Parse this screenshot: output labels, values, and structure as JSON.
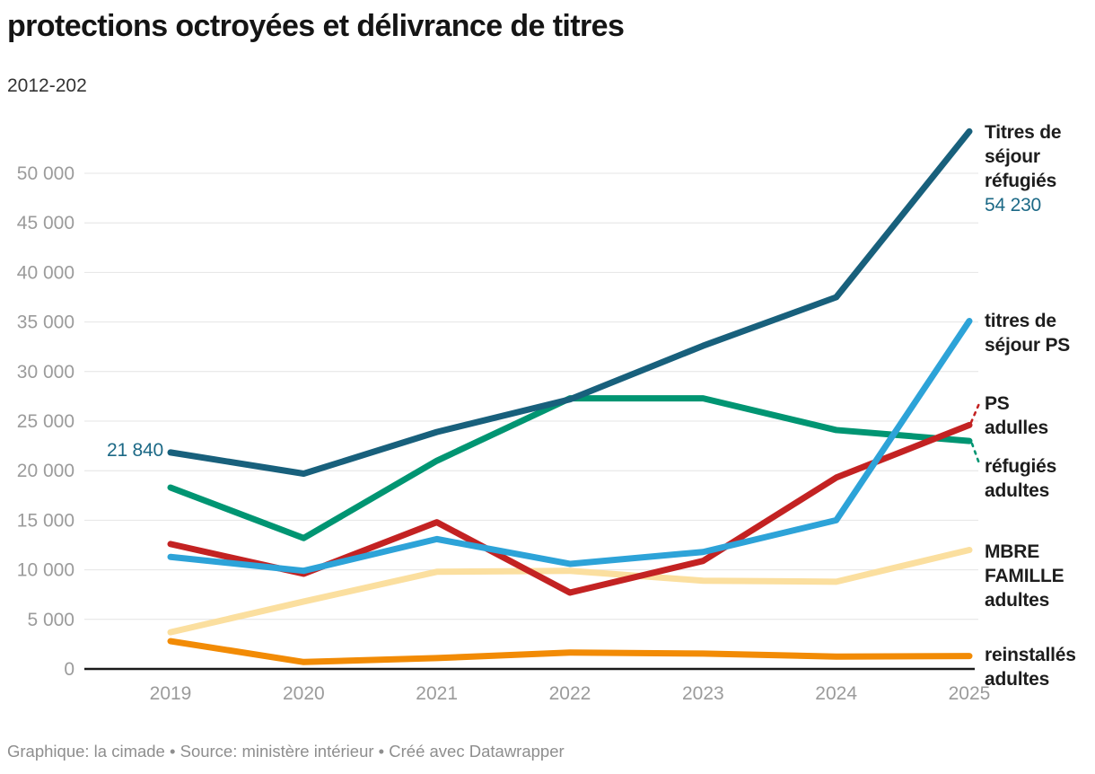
{
  "header": {
    "title": "protections octroyées et délivrance de titres",
    "subtitle": "2012-202"
  },
  "footer": {
    "text": "Graphique: la cimade • Source: ministère intérieur  • Créé avec Datawrapper"
  },
  "chart_data": {
    "type": "line",
    "x": [
      2019,
      2020,
      2021,
      2022,
      2023,
      2024,
      2025
    ],
    "x_labels": [
      "2019",
      "2020",
      "2021",
      "2022",
      "2023",
      "2024",
      "2025"
    ],
    "series": [
      {
        "name": "Titres de séjour réfugiés",
        "label_lines": [
          "Titres de",
          "séjour",
          "réfugiés"
        ],
        "color": "#18607c",
        "values": [
          21840,
          19700,
          23900,
          27200,
          32600,
          37500,
          54230
        ],
        "start_label": "21 840",
        "end_label": "54 230",
        "label_color": "#1c6986"
      },
      {
        "name": "titres de séjour PS",
        "label_lines": [
          "titres de",
          "séjour PS"
        ],
        "color": "#2da3d8",
        "values": [
          11300,
          9900,
          13100,
          10600,
          11800,
          15000,
          35100
        ]
      },
      {
        "name": "PS adulles",
        "label_lines": [
          "PS",
          "adulles"
        ],
        "color": "#c32222",
        "values": [
          12600,
          9600,
          14800,
          7700,
          10900,
          19300,
          24600
        ]
      },
      {
        "name": "réfugiés adultes",
        "label_lines": [
          "réfugiés",
          "adultes"
        ],
        "color": "#009572",
        "values": [
          18300,
          13200,
          21000,
          27300,
          27300,
          24100,
          23000
        ]
      },
      {
        "name": "MBRE FAMILLE adultes",
        "label_lines": [
          "MBRE",
          "FAMILLE",
          "adultes"
        ],
        "color": "#fbdf9f",
        "values": [
          3700,
          6800,
          9800,
          9900,
          8900,
          8800,
          12000
        ]
      },
      {
        "name": "reinstallés adultes",
        "label_lines": [
          "reinstallés",
          "adultes"
        ],
        "color": "#f28b05",
        "values": [
          2800,
          700,
          1100,
          1650,
          1550,
          1250,
          1300
        ]
      }
    ],
    "ylim": [
      0,
      55000
    ],
    "y_ticks": [
      0,
      5000,
      10000,
      15000,
      20000,
      25000,
      30000,
      35000,
      40000,
      45000,
      50000
    ],
    "y_tick_labels": [
      "0",
      "5 000",
      "10 000",
      "15 000",
      "20 000",
      "25 000",
      "30 000",
      "35 000",
      "40 000",
      "45 000",
      "50 000"
    ],
    "grid": true,
    "legend_position": "right-annotations",
    "axis_color": "#9b9b9b",
    "grid_color": "#e4e4e4",
    "baseline_color": "#1a1a1a"
  }
}
